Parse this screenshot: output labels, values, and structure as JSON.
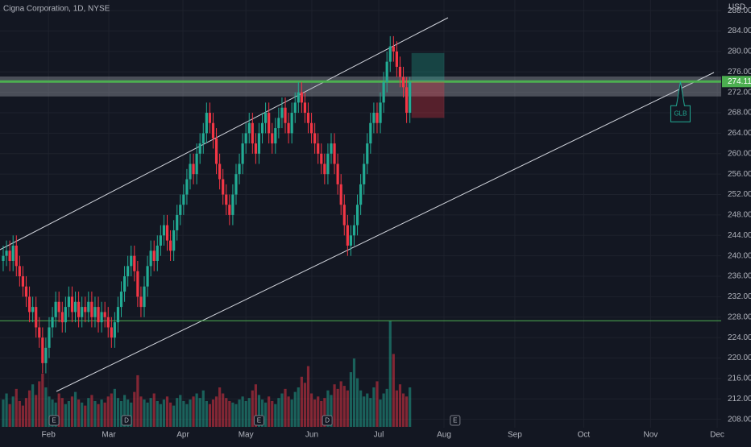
{
  "chart_data": {
    "type": "candlestick",
    "title": "Cigna Corporation, 1D, NYSE",
    "currency": "USD",
    "up_color": "#22ab94",
    "down_color": "#f23645",
    "categories": [
      null,
      null,
      null,
      null,
      null,
      null,
      null,
      null,
      null,
      null,
      null,
      null,
      null,
      null,
      null,
      null,
      null,
      null,
      null,
      null,
      null,
      null,
      null,
      null,
      null,
      null,
      null,
      null,
      null,
      null,
      null,
      null,
      null,
      null,
      null,
      null,
      null,
      null,
      null,
      null,
      null,
      null,
      null,
      null,
      null,
      null,
      null,
      null,
      null,
      null,
      null,
      null,
      null,
      null,
      null,
      null,
      null,
      null,
      null,
      null,
      null,
      null,
      null,
      null,
      null,
      null,
      null,
      null,
      null,
      null,
      null,
      null,
      null,
      null,
      null,
      null,
      null,
      null,
      null,
      null,
      null,
      null,
      null,
      null,
      null,
      null,
      null,
      null,
      null,
      null,
      null,
      null,
      null,
      null,
      null,
      null,
      null,
      null,
      null,
      null,
      null,
      null,
      null,
      null,
      null,
      null,
      null,
      null,
      null,
      null,
      null,
      null,
      null,
      null,
      null,
      null,
      null,
      null,
      null,
      null,
      null,
      null,
      null,
      null,
      null
    ],
    "open": [
      239,
      240,
      241,
      239,
      242,
      238,
      236,
      234,
      232,
      229,
      230,
      226,
      224,
      219,
      222,
      226,
      228,
      231,
      229,
      227,
      230,
      232,
      229,
      231,
      228,
      230,
      229,
      231,
      228,
      230,
      227,
      229,
      228,
      226,
      224,
      227,
      230,
      233,
      236,
      238,
      240,
      237,
      232,
      230,
      234,
      238,
      241,
      239,
      242,
      244,
      246,
      243,
      241,
      245,
      248,
      250,
      252,
      255,
      258,
      256,
      260,
      262,
      264,
      268,
      266,
      263,
      258,
      255,
      252,
      250,
      248,
      252,
      256,
      258,
      262,
      264,
      266,
      262,
      260,
      264,
      266,
      268,
      264,
      262,
      265,
      267,
      269,
      266,
      264,
      268,
      270,
      272,
      270,
      268,
      266,
      264,
      262,
      260,
      258,
      256,
      260,
      262,
      258,
      254,
      250,
      246,
      242,
      244,
      246,
      250,
      254,
      258,
      262,
      266,
      268,
      266,
      270,
      274,
      278,
      281,
      280,
      277,
      275,
      273,
      268
    ],
    "high": [
      242,
      243,
      243,
      244,
      244,
      240,
      238,
      236,
      234,
      232,
      232,
      228,
      226,
      224,
      228,
      230,
      233,
      233,
      231,
      232,
      234,
      234,
      233,
      233,
      232,
      232,
      233,
      233,
      232,
      232,
      231,
      231,
      230,
      228,
      229,
      232,
      235,
      238,
      240,
      242,
      242,
      239,
      234,
      236,
      240,
      243,
      243,
      244,
      246,
      248,
      248,
      245,
      247,
      250,
      252,
      254,
      257,
      260,
      260,
      262,
      264,
      266,
      270,
      270,
      268,
      265,
      260,
      257,
      254,
      252,
      254,
      258,
      260,
      264,
      266,
      268,
      268,
      264,
      266,
      268,
      270,
      270,
      266,
      267,
      269,
      271,
      271,
      268,
      270,
      272,
      274,
      274,
      272,
      270,
      268,
      266,
      264,
      262,
      260,
      262,
      264,
      264,
      260,
      256,
      252,
      248,
      246,
      248,
      252,
      256,
      260,
      264,
      268,
      270,
      270,
      272,
      276,
      280,
      283,
      283,
      282,
      279,
      277,
      275,
      275
    ],
    "low": [
      237,
      238,
      237,
      237,
      236,
      234,
      232,
      230,
      227,
      227,
      224,
      222,
      217,
      217,
      220,
      224,
      226,
      227,
      225,
      225,
      228,
      227,
      227,
      226,
      226,
      227,
      227,
      226,
      226,
      225,
      225,
      226,
      224,
      222,
      222,
      225,
      228,
      231,
      234,
      236,
      235,
      230,
      228,
      228,
      232,
      236,
      237,
      237,
      240,
      242,
      241,
      239,
      239,
      243,
      246,
      248,
      250,
      253,
      254,
      254,
      258,
      260,
      262,
      264,
      261,
      256,
      253,
      250,
      248,
      246,
      246,
      250,
      254,
      256,
      260,
      262,
      260,
      258,
      258,
      262,
      264,
      262,
      260,
      260,
      263,
      265,
      264,
      262,
      262,
      266,
      268,
      268,
      266,
      264,
      262,
      260,
      258,
      256,
      254,
      254,
      258,
      256,
      252,
      248,
      244,
      240,
      240,
      242,
      244,
      248,
      252,
      256,
      260,
      264,
      264,
      264,
      268,
      272,
      276,
      278,
      275,
      273,
      271,
      266,
      266
    ],
    "close": [
      240,
      241,
      239,
      242,
      238,
      236,
      234,
      232,
      229,
      230,
      226,
      224,
      219,
      222,
      226,
      228,
      231,
      229,
      227,
      230,
      232,
      229,
      231,
      228,
      230,
      229,
      231,
      228,
      230,
      227,
      229,
      228,
      226,
      224,
      227,
      230,
      233,
      236,
      238,
      240,
      237,
      232,
      230,
      234,
      238,
      241,
      239,
      242,
      244,
      246,
      243,
      241,
      245,
      248,
      250,
      252,
      255,
      258,
      256,
      260,
      262,
      264,
      268,
      266,
      263,
      258,
      255,
      252,
      250,
      248,
      252,
      256,
      258,
      262,
      264,
      266,
      262,
      260,
      264,
      266,
      268,
      264,
      262,
      265,
      267,
      269,
      266,
      264,
      268,
      270,
      272,
      270,
      268,
      266,
      264,
      262,
      260,
      258,
      256,
      260,
      262,
      258,
      254,
      250,
      246,
      242,
      244,
      246,
      250,
      254,
      258,
      262,
      266,
      268,
      266,
      270,
      274,
      278,
      281,
      280,
      277,
      275,
      273,
      268,
      274
    ],
    "volume": [
      18,
      22,
      15,
      20,
      25,
      17,
      14,
      19,
      24,
      28,
      21,
      30,
      35,
      26,
      20,
      18,
      16,
      22,
      19,
      15,
      17,
      20,
      23,
      18,
      16,
      14,
      19,
      21,
      17,
      15,
      18,
      16,
      20,
      22,
      25,
      19,
      17,
      21,
      18,
      16,
      23,
      34,
      20,
      18,
      16,
      19,
      22,
      17,
      15,
      18,
      20,
      16,
      14,
      19,
      21,
      17,
      15,
      18,
      20,
      22,
      19,
      24,
      17,
      15,
      18,
      20,
      26,
      22,
      19,
      17,
      16,
      15,
      18,
      20,
      17,
      19,
      24,
      28,
      21,
      18,
      16,
      20,
      17,
      15,
      19,
      22,
      25,
      20,
      18,
      23,
      26,
      33,
      29,
      40,
      22,
      18,
      20,
      17,
      19,
      24,
      21,
      28,
      25,
      30,
      27,
      24,
      36,
      45,
      32,
      24,
      20,
      22,
      19,
      26,
      30,
      18,
      22,
      25,
      70,
      48,
      24,
      28,
      22,
      20,
      26
    ],
    "ylim": [
      207,
      288.5
    ],
    "yticks": [
      {
        "value": 208,
        "label": "208.00"
      },
      {
        "value": 212,
        "label": "212.00"
      },
      {
        "value": 216,
        "label": "216.00"
      },
      {
        "value": 220,
        "label": "220.00"
      },
      {
        "value": 224,
        "label": "224.00"
      },
      {
        "value": 228,
        "label": "228.00"
      },
      {
        "value": 232,
        "label": "232.00"
      },
      {
        "value": 236,
        "label": "236.00"
      },
      {
        "value": 240,
        "label": "240.00"
      },
      {
        "value": 244,
        "label": "244.00"
      },
      {
        "value": 248,
        "label": "248.00"
      },
      {
        "value": 252,
        "label": "252.00"
      },
      {
        "value": 256,
        "label": "256.00"
      },
      {
        "value": 260,
        "label": "260.00"
      },
      {
        "value": 264,
        "label": "264.00"
      },
      {
        "value": 268,
        "label": "268.00"
      },
      {
        "value": 272,
        "label": "272.00"
      },
      {
        "value": 276,
        "label": "276.00"
      },
      {
        "value": 280,
        "label": "280.00"
      },
      {
        "value": 284,
        "label": "284.00"
      },
      {
        "value": 288,
        "label": "288.00"
      }
    ],
    "xlim": [
      -0.5,
      219.5
    ],
    "xticks": [
      {
        "value": 13.8,
        "label": "Feb"
      },
      {
        "value": 32.2,
        "label": "Mar"
      },
      {
        "value": 54.8,
        "label": "Apr"
      },
      {
        "value": 74,
        "label": "May"
      },
      {
        "value": 94.1,
        "label": "Jun"
      },
      {
        "value": 114.5,
        "label": "Jul"
      },
      {
        "value": 134.4,
        "label": "Aug"
      },
      {
        "value": 156,
        "label": "Sep"
      },
      {
        "value": 177,
        "label": "Oct"
      },
      {
        "value": 197.4,
        "label": "Nov"
      },
      {
        "value": 217.7,
        "label": "Dec"
      }
    ],
    "zone": [
      271.2,
      275.1
    ],
    "levels": [
      {
        "value": 274.11,
        "label": "274.11"
      },
      {
        "value": 227.3
      }
    ],
    "position": {
      "from": 124.5,
      "to": 134.5,
      "target": 279.7,
      "entry": 274.11,
      "stop": 267
    },
    "annotation": {
      "label": "GLB",
      "x": 206.5,
      "value": 274.11
    },
    "events": [
      {
        "label": "E",
        "x": 15.5
      },
      {
        "label": "D",
        "x": 37.6
      },
      {
        "label": "E",
        "x": 78
      },
      {
        "label": "D",
        "x": 98.8
      },
      {
        "label": "E",
        "x": 137.8
      }
    ]
  }
}
